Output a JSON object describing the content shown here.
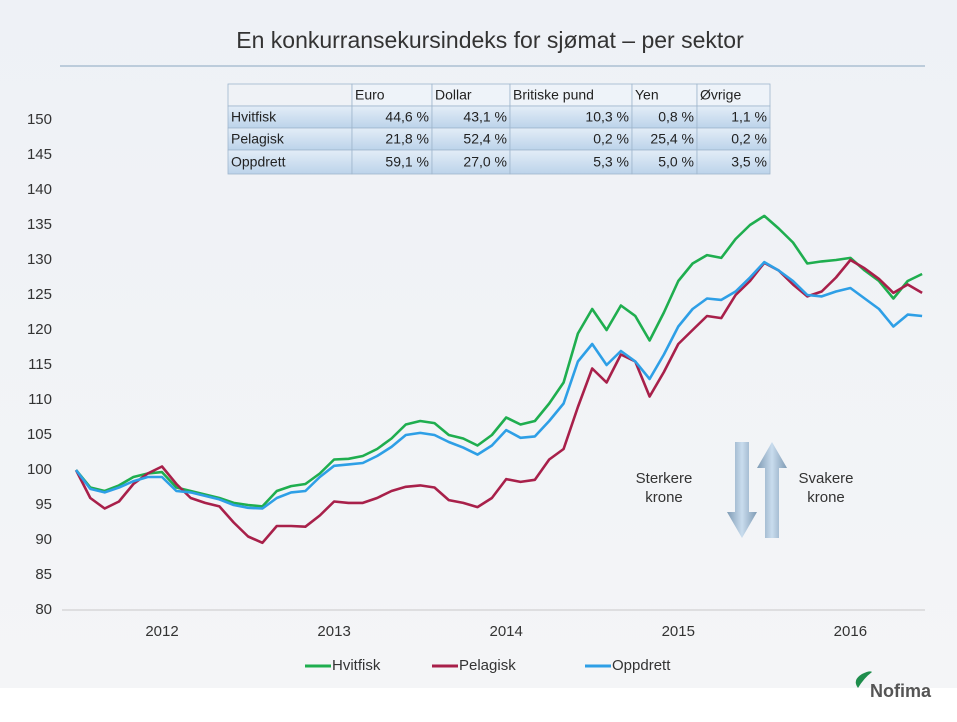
{
  "chart_data": {
    "type": "line",
    "title": "En konkurransekursindeks for sjømat – per sektor",
    "categories": [
      null,
      null,
      null,
      null,
      null,
      null,
      "2012",
      null,
      null,
      null,
      null,
      null,
      null,
      null,
      null,
      null,
      null,
      null,
      "2013",
      null,
      null,
      null,
      null,
      null,
      null,
      null,
      null,
      null,
      null,
      null,
      "2014",
      null,
      null,
      null,
      null,
      null,
      null,
      null,
      null,
      null,
      null,
      null,
      "2015",
      null,
      null,
      null,
      null,
      null,
      null,
      null,
      null,
      null,
      null,
      null,
      "2016",
      null,
      null,
      null,
      null,
      null
    ],
    "series": [
      {
        "name": "Hvitfisk",
        "color": "#1fae4f",
        "values": [
          100,
          97.5,
          97,
          97.8,
          99,
          99.5,
          99.7,
          97.5,
          97,
          96.5,
          96,
          95.3,
          95,
          94.8,
          97,
          97.7,
          98,
          99.5,
          101.5,
          101.6,
          102,
          103,
          104.5,
          106.5,
          107,
          106.7,
          105,
          104.5,
          103.5,
          105,
          107.5,
          106.5,
          107,
          109.5,
          112.5,
          119.5,
          123,
          120,
          123.5,
          122,
          118.5,
          122.5,
          127,
          129.5,
          130.7,
          130.3,
          133,
          135,
          136.3,
          134.5,
          132.5,
          129.5,
          129.8,
          130,
          130.3,
          128.5,
          127,
          124.5,
          127,
          128
        ]
      },
      {
        "name": "Pelagisk",
        "color": "#a8204a",
        "values": [
          100,
          96,
          94.5,
          95.5,
          98,
          99.5,
          100.5,
          98,
          96,
          95.3,
          94.8,
          92.5,
          90.5,
          89.6,
          92,
          92,
          91.9,
          93.5,
          95.5,
          95.3,
          95.3,
          96,
          97,
          97.6,
          97.8,
          97.5,
          95.7,
          95.3,
          94.7,
          96,
          98.7,
          98.3,
          98.6,
          101.5,
          103,
          109,
          114.5,
          112.5,
          116.5,
          115.5,
          110.5,
          114,
          118,
          120,
          122,
          121.7,
          125,
          127,
          129.6,
          128.5,
          126.5,
          124.8,
          125.5,
          127.5,
          130,
          128.8,
          127.3,
          125.3,
          126.5,
          125.3
        ]
      },
      {
        "name": "Oppdrett",
        "color": "#2e9fe6",
        "values": [
          100,
          97.3,
          96.8,
          97.5,
          98.4,
          99,
          99,
          97,
          96.8,
          96.3,
          95.8,
          95,
          94.6,
          94.5,
          96,
          96.8,
          97,
          99,
          100.6,
          100.8,
          101,
          102,
          103.3,
          105,
          105.3,
          105,
          104,
          103.2,
          102.2,
          103.5,
          105.7,
          104.6,
          104.8,
          107,
          109.5,
          115.5,
          118,
          115,
          117,
          115.5,
          113,
          116.5,
          120.5,
          123,
          124.5,
          124.3,
          125.5,
          127.5,
          129.7,
          128.5,
          127,
          125,
          124.8,
          125.5,
          126,
          124.5,
          123,
          120.5,
          122.2,
          122
        ]
      }
    ],
    "ylim": [
      80,
      150
    ],
    "yticks": [
      80,
      85,
      90,
      95,
      100,
      105,
      110,
      115,
      120,
      125,
      130,
      135,
      140,
      145,
      150
    ],
    "grid": false,
    "legend": "bottom",
    "annotations": [
      [
        "Sterkere",
        "krone"
      ],
      [
        "Svakere",
        "krone"
      ]
    ],
    "table": {
      "header": [
        "",
        "Euro",
        "Dollar",
        "Britiske pund",
        "Yen",
        "Øvrige"
      ],
      "rows": [
        [
          "Hvitfisk",
          "44,6 %",
          "43,1 %",
          "10,3 %",
          "0,8 %",
          "1,1 %"
        ],
        [
          "Pelagisk",
          "21,8 %",
          "52,4 %",
          "0,2 %",
          "25,4 %",
          "0,2 %"
        ],
        [
          "Oppdrett",
          "59,1 %",
          "27,0 %",
          "5,3 %",
          "5,0 %",
          "3,5 %"
        ]
      ]
    }
  },
  "logo": "Nofima"
}
